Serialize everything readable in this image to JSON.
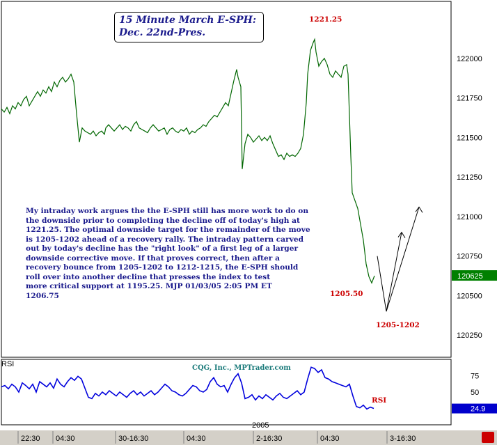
{
  "title": {
    "line1": "15 Minute March E-SPH:",
    "line2": "Dec. 22nd-Pres."
  },
  "commentary": "My intraday work argues the the E-SPH still has more work to do on\nthe downside prior to completing the decline off of today's high at\n1221.25. The optimal downside target for the remainder of the move\nis 1205-1202 ahead of a recovery rally. The intraday pattern carved\nout by today's decline has the \"right look\" of a first leg of a larger\ndownside corrective move. If that proves correct, then after a\nrecovery bounce from 1205-1202 to 1212-1215, the E-SPH should\nroll over into another decline that presses the index to test\nmore critical support at 1195.25. MJP 01/03/05  2:05 PM ET\n1206.75",
  "annotations": {
    "high": "1221.25",
    "low": "1205.50",
    "target": "1205-1202",
    "rsi_label": "RSI"
  },
  "credit": "CQG, Inc., MPTrader.com",
  "colors": {
    "price": "#006600",
    "rsi": "#0000dd",
    "text": "#1a1a8c",
    "red": "#cc0000",
    "last_price_bg": "#008000",
    "rsi_badge_bg": "#0000cc"
  },
  "chart_data": {
    "type": "line",
    "price_panel": {
      "y_ticks": [
        122000,
        121750,
        121500,
        121250,
        121000,
        120750,
        120500,
        120250
      ],
      "y_tick_labels": [
        "122000",
        "121750",
        "121500",
        "121250",
        "121000",
        "120750",
        "120500",
        "120250"
      ],
      "ylim": [
        120110,
        122360
      ],
      "last_price": "120625",
      "series": [
        {
          "x": [
            0,
            4,
            8,
            12,
            16,
            20,
            24,
            28,
            32,
            36,
            40,
            44,
            48,
            52,
            56,
            60,
            64,
            68,
            72,
            76,
            80,
            84,
            88,
            92,
            96,
            100,
            104,
            108,
            112,
            116,
            120,
            124,
            128,
            132,
            136,
            140,
            144,
            148,
            150,
            154,
            158,
            162,
            166,
            170,
            174,
            178,
            182,
            186,
            190,
            194,
            198,
            202,
            206,
            210,
            214,
            218,
            222,
            226,
            230,
            234,
            238,
            242,
            246,
            250,
            254,
            258,
            262,
            266,
            270,
            274,
            278,
            282,
            286,
            290,
            294,
            298,
            302,
            306,
            310,
            314,
            318,
            322,
            326,
            330,
            334,
            338,
            340,
            344,
            346,
            350,
            354,
            358,
            362,
            366,
            370,
            374,
            378,
            382,
            386,
            390,
            394,
            398,
            402,
            406,
            410,
            414,
            418,
            422,
            426,
            430,
            434,
            438,
            440,
            444,
            448,
            450,
            452,
            456,
            460,
            464,
            468,
            472,
            476,
            480,
            484,
            488,
            492,
            496,
            498,
            502,
            504,
            508,
            512,
            516,
            520,
            524,
            528,
            532,
            536
          ],
          "y": [
            121680,
            121660,
            121690,
            121650,
            121700,
            121680,
            121720,
            121700,
            121740,
            121760,
            121700,
            121730,
            121760,
            121790,
            121760,
            121800,
            121780,
            121820,
            121790,
            121850,
            121820,
            121860,
            121880,
            121850,
            121870,
            121900,
            121850,
            121650,
            121470,
            121560,
            121540,
            121530,
            121520,
            121540,
            121510,
            121530,
            121540,
            121520,
            121560,
            121580,
            121560,
            121540,
            121560,
            121580,
            121550,
            121570,
            121560,
            121540,
            121580,
            121600,
            121560,
            121550,
            121540,
            121530,
            121560,
            121580,
            121560,
            121540,
            121550,
            121560,
            121520,
            121550,
            121560,
            121540,
            121530,
            121550,
            121540,
            121560,
            121520,
            121540,
            121530,
            121550,
            121560,
            121580,
            121570,
            121600,
            121620,
            121640,
            121630,
            121660,
            121690,
            121720,
            121700,
            121780,
            121860,
            121930,
            121880,
            121820,
            121300,
            121460,
            121520,
            121500,
            121470,
            121490,
            121510,
            121480,
            121500,
            121480,
            121510,
            121460,
            121420,
            121380,
            121390,
            121360,
            121400,
            121380,
            121390,
            121380,
            121400,
            121430,
            121520,
            121720,
            121900,
            122050,
            122100,
            122120,
            122040,
            121950,
            121980,
            122000,
            121960,
            121900,
            121880,
            121920,
            121900,
            121880,
            121950,
            121960,
            121900,
            121380,
            121150,
            121100,
            121050,
            120950,
            120850,
            120700,
            120620,
            120580,
            120625
          ]
        }
      ]
    },
    "projection": {
      "x": [
        540,
        553,
        575,
        565,
        553,
        600,
        601
      ],
      "y": [
        120750,
        120400,
        120900,
        120850,
        120400,
        121060,
        121060
      ]
    },
    "rsi_panel": {
      "name": "RSI",
      "y_ticks": [
        75,
        50
      ],
      "ylim": [
        0,
        100
      ],
      "overbought": 75,
      "oversold": 25,
      "current": "24.9",
      "x": [
        0,
        5,
        10,
        15,
        20,
        25,
        30,
        35,
        40,
        45,
        50,
        55,
        60,
        65,
        70,
        75,
        80,
        85,
        90,
        95,
        100,
        105,
        110,
        115,
        120,
        125,
        130,
        135,
        140,
        145,
        150,
        155,
        160,
        165,
        170,
        175,
        180,
        185,
        190,
        195,
        200,
        205,
        210,
        215,
        220,
        225,
        230,
        235,
        240,
        245,
        250,
        255,
        260,
        265,
        270,
        275,
        280,
        285,
        290,
        295,
        300,
        305,
        310,
        315,
        320,
        325,
        330,
        335,
        340,
        345,
        350,
        355,
        360,
        365,
        370,
        375,
        380,
        385,
        390,
        395,
        400,
        405,
        410,
        415,
        420,
        425,
        430,
        435,
        440,
        445,
        450,
        455,
        460,
        465,
        470,
        475,
        480,
        485,
        490,
        495,
        500,
        505,
        510,
        515,
        520,
        525,
        530,
        535
      ],
      "y": [
        58,
        60,
        55,
        62,
        58,
        50,
        64,
        60,
        55,
        62,
        50,
        66,
        62,
        58,
        64,
        56,
        70,
        62,
        58,
        66,
        72,
        68,
        74,
        70,
        56,
        42,
        40,
        48,
        44,
        50,
        46,
        52,
        48,
        44,
        50,
        46,
        42,
        48,
        52,
        46,
        50,
        44,
        48,
        52,
        46,
        50,
        56,
        62,
        58,
        52,
        50,
        46,
        44,
        48,
        54,
        60,
        58,
        52,
        50,
        54,
        66,
        72,
        62,
        58,
        60,
        50,
        62,
        72,
        78,
        64,
        40,
        42,
        46,
        38,
        44,
        40,
        46,
        42,
        38,
        44,
        48,
        42,
        40,
        44,
        48,
        52,
        46,
        50,
        70,
        88,
        86,
        80,
        84,
        72,
        70,
        66,
        64,
        62,
        60,
        58,
        62,
        44,
        28,
        26,
        30,
        24,
        27,
        25
      ]
    },
    "x_tick_labels": [
      "22:30",
      "04:30",
      "30-16:30",
      "04:30",
      "2-16:30",
      "04:30",
      "3-16:30"
    ],
    "year_label": "2005"
  }
}
